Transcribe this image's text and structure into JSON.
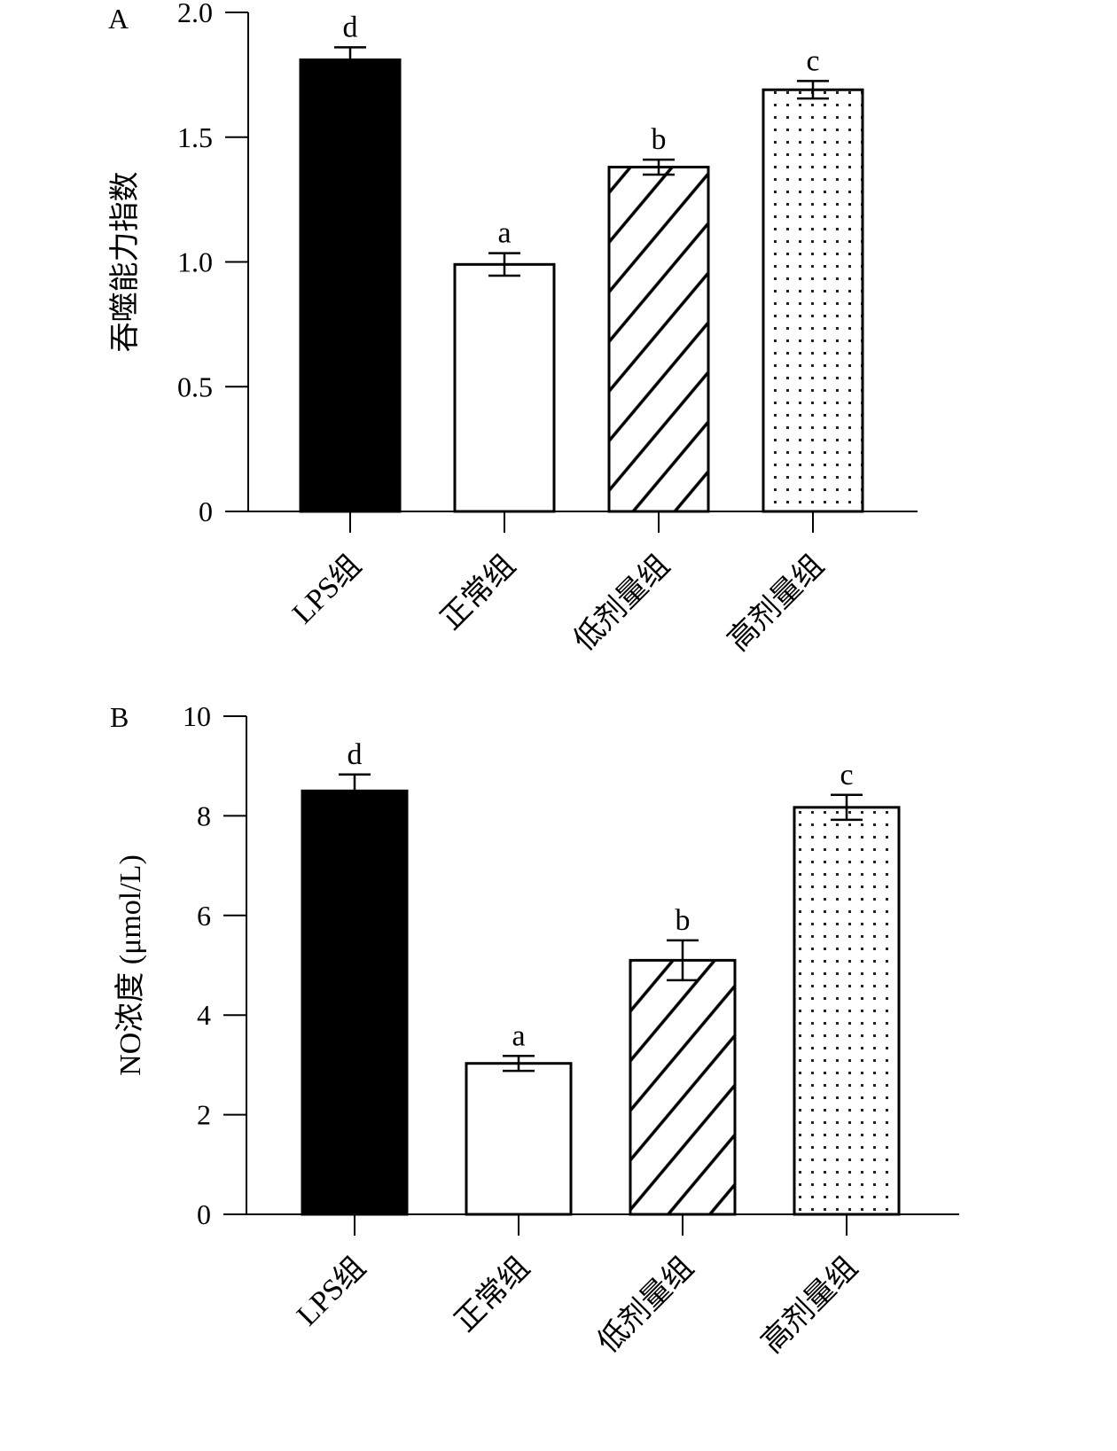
{
  "chart_data": [
    {
      "panel": "A",
      "type": "bar",
      "ylabel": "吞噬能力指数",
      "ylim": [
        0,
        2.0
      ],
      "yticks": [
        "0",
        "0.5",
        "1.0",
        "1.5",
        "2.0"
      ],
      "categories": [
        "LPS组",
        "正常组",
        "低剂量组",
        "高剂量组"
      ],
      "values": [
        1.81,
        0.99,
        1.38,
        1.69
      ],
      "errors": [
        0.05,
        0.045,
        0.03,
        0.035
      ],
      "significance": [
        "d",
        "a",
        "b",
        "c"
      ],
      "fills": [
        "solid-black",
        "white",
        "diagonal-hatch",
        "dotted"
      ],
      "grid": false
    },
    {
      "panel": "B",
      "type": "bar",
      "ylabel": "NO浓度 (μmol/L)",
      "ylim": [
        0,
        10
      ],
      "yticks": [
        "0",
        "2",
        "4",
        "6",
        "8",
        "10"
      ],
      "categories": [
        "LPS组",
        "正常组",
        "低剂量组",
        "高剂量组"
      ],
      "values": [
        8.5,
        3.03,
        5.1,
        8.17
      ],
      "errors": [
        0.33,
        0.15,
        0.4,
        0.25
      ],
      "significance": [
        "d",
        "a",
        "b",
        "c"
      ],
      "fills": [
        "solid-black",
        "white",
        "diagonal-hatch",
        "dotted"
      ],
      "grid": false
    }
  ]
}
